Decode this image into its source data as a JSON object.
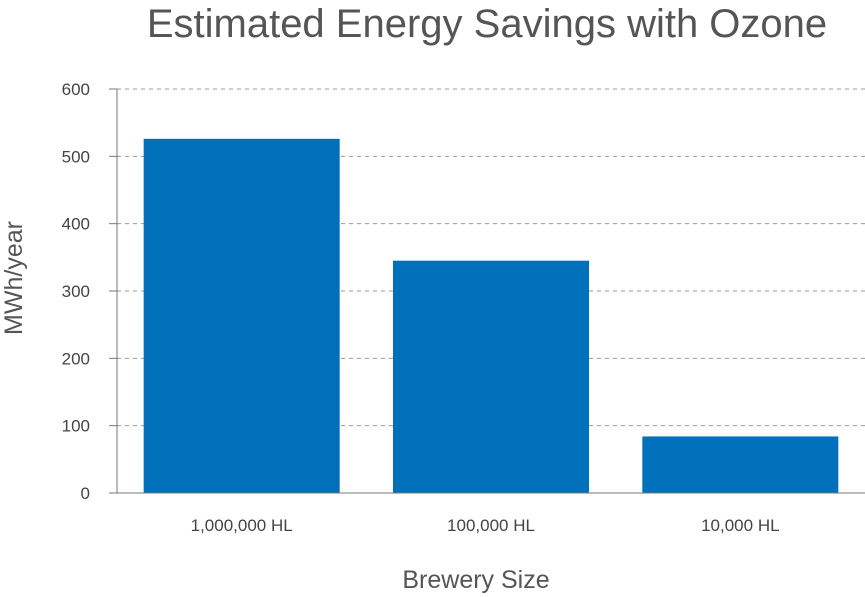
{
  "chart_data": {
    "type": "bar",
    "title": "Estimated Energy Savings with Ozone",
    "xlabel": "Brewery Size",
    "ylabel": "MWh/year",
    "categories": [
      "1,000,000 HL",
      "100,000 HL",
      "10,000 HL"
    ],
    "values": [
      526,
      345,
      84
    ],
    "ylim": [
      0,
      600
    ],
    "yticks": [
      0,
      100,
      200,
      300,
      400,
      500,
      600
    ],
    "grid": true,
    "bar_color": "#0070bb"
  }
}
